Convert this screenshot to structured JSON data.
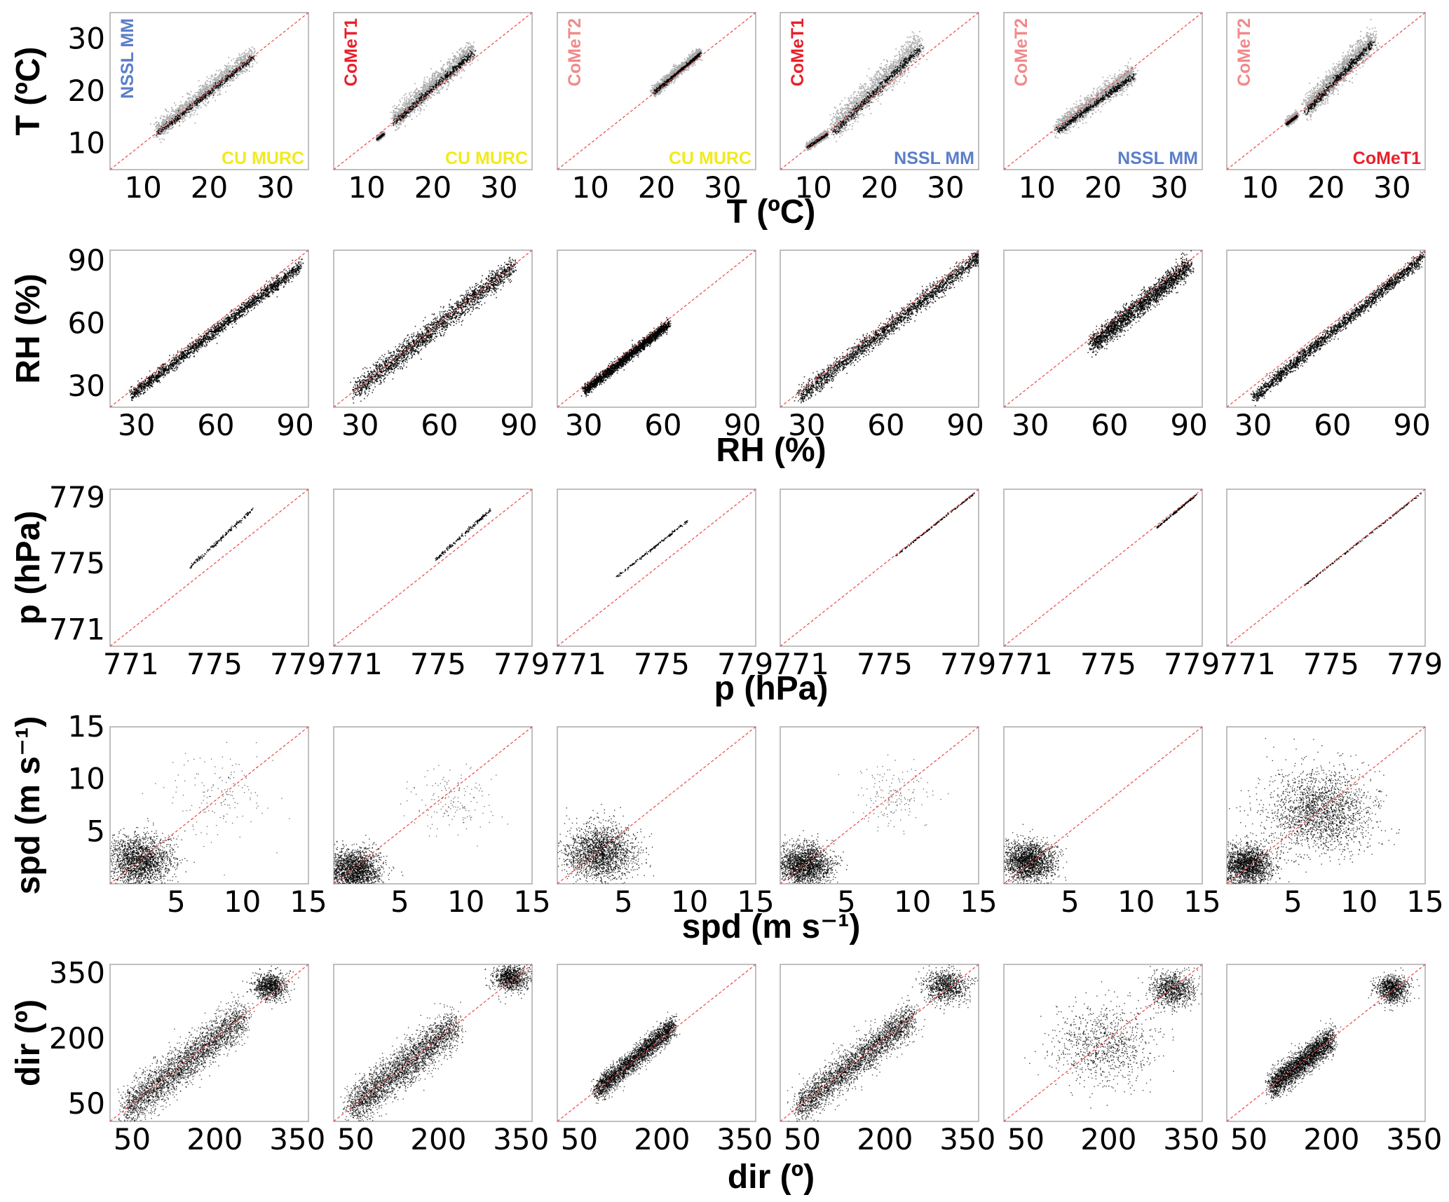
{
  "colors": {
    "NSSL MM": "#5b7ec9",
    "CoMeT1": "#e8202a",
    "CoMeT2": "#f08a8a",
    "CU MURC": "#f2ea1c",
    "identity_line": "#ee4444",
    "dense_points": "#000000",
    "light_points": "#aaaaaa",
    "frame": "#aaaaaa"
  },
  "chart_data": {
    "type": "scatter",
    "layout": "5x6 grid of scatter panels with 1:1 reference lines",
    "column_pairs": [
      {
        "y_instrument": "NSSL MM",
        "x_instrument": "CU MURC"
      },
      {
        "y_instrument": "CoMeT1",
        "x_instrument": "CU MURC"
      },
      {
        "y_instrument": "CoMeT2",
        "x_instrument": "CU MURC"
      },
      {
        "y_instrument": "CoMeT1",
        "x_instrument": "NSSL MM"
      },
      {
        "y_instrument": "CoMeT2",
        "x_instrument": "NSSL MM"
      },
      {
        "y_instrument": "CoMeT2",
        "x_instrument": "CoMeT1"
      }
    ],
    "rows": [
      {
        "ylabel": "T (ºC)",
        "xlabel": "T (ºC)",
        "range": [
          5,
          35
        ],
        "ticks": [
          10,
          20,
          30
        ],
        "tick_labels": [
          "10",
          "20",
          "30"
        ],
        "panels": [
          {
            "clusters": [
              {
                "from": [
                  12,
                  12.5
                ],
                "to": [
                  26.5,
                  27
                ],
                "spread": 1.8,
                "style": "band"
              }
            ]
          },
          {
            "clusters": [
              {
                "from": [
                  14,
                  14.5
                ],
                "to": [
                  26,
                  28
                ],
                "spread": 2.0,
                "style": "band"
              },
              {
                "from": [
                  11.5,
                  11
                ],
                "to": [
                  12.5,
                  12
                ],
                "spread": 0.4,
                "style": "band"
              }
            ]
          },
          {
            "clusters": [
              {
                "from": [
                  19.5,
                  20
                ],
                "to": [
                  26.5,
                  27.5
                ],
                "spread": 1.0,
                "style": "band"
              }
            ]
          },
          {
            "clusters": [
              {
                "from": [
                  13,
                  13
                ],
                "to": [
                  26,
                  29
                ],
                "spread": 2.5,
                "style": "band"
              },
              {
                "from": [
                  9,
                  9.5
                ],
                "to": [
                  12,
                  12
                ],
                "spread": 0.6,
                "style": "band"
              }
            ]
          },
          {
            "clusters": [
              {
                "from": [
                  13,
                  13
                ],
                "to": [
                  24.5,
                  23.5
                ],
                "spread": 1.8,
                "style": "band"
              }
            ]
          },
          {
            "clusters": [
              {
                "from": [
                  17,
                  17
                ],
                "to": [
                  27,
                  30
                ],
                "spread": 2.2,
                "style": "band"
              },
              {
                "from": [
                  14,
                  14
                ],
                "to": [
                  15.5,
                  15.5
                ],
                "spread": 0.6,
                "style": "band"
              }
            ]
          }
        ]
      },
      {
        "ylabel": "RH (%)",
        "xlabel": "RH (%)",
        "range": [
          20,
          95
        ],
        "ticks": [
          30,
          60,
          90
        ],
        "tick_labels": [
          "30",
          "60",
          "90"
        ],
        "panels": [
          {
            "clusters": [
              {
                "from": [
                  28,
                  26
                ],
                "to": [
                  92,
                  88
                ],
                "spread": 3.0,
                "style": "dense"
              }
            ]
          },
          {
            "clusters": [
              {
                "from": [
                  28,
                  28
                ],
                "to": [
                  88,
                  88
                ],
                "spread": 5.0,
                "style": "dense"
              }
            ]
          },
          {
            "clusters": [
              {
                "from": [
                  30,
                  28
                ],
                "to": [
                  62,
                  60
                ],
                "spread": 2.5,
                "style": "dense"
              }
            ]
          },
          {
            "clusters": [
              {
                "from": [
                  27,
                  25
                ],
                "to": [
                  96,
                  93
                ],
                "spread": 4.0,
                "style": "dense"
              }
            ]
          },
          {
            "clusters": [
              {
                "from": [
                  53,
                  50
                ],
                "to": [
                  90,
                  88
                ],
                "spread": 5.0,
                "style": "dense"
              }
            ]
          },
          {
            "clusters": [
              {
                "from": [
                  30,
                  25
                ],
                "to": [
                  94,
                  92
                ],
                "spread": 3.0,
                "style": "dense"
              }
            ]
          }
        ]
      },
      {
        "ylabel": "p (hPa)",
        "xlabel": "p (hPa)",
        "range": [
          770,
          779.5
        ],
        "ticks": [
          771,
          775,
          779
        ],
        "tick_labels": [
          "771",
          "775",
          "779"
        ],
        "panels": [
          {
            "clusters": [
              {
                "from": [
                  773.8,
                  774.8
                ],
                "to": [
                  776.8,
                  778.3
                ],
                "spread": 0.12,
                "style": "thin"
              }
            ]
          },
          {
            "clusters": [
              {
                "from": [
                  774.8,
                  775.2
                ],
                "to": [
                  777.5,
                  778.3
                ],
                "spread": 0.12,
                "style": "thin"
              }
            ]
          },
          {
            "clusters": [
              {
                "from": [
                  772.8,
                  774.2
                ],
                "to": [
                  776.2,
                  777.6
                ],
                "spread": 0.08,
                "style": "thin"
              }
            ]
          },
          {
            "clusters": [
              {
                "from": [
                  775.5,
                  775.5
                ],
                "to": [
                  779.3,
                  779.3
                ],
                "spread": 0.05,
                "style": "thin"
              }
            ]
          },
          {
            "clusters": [
              {
                "from": [
                  777.3,
                  777.2
                ],
                "to": [
                  779.2,
                  779.2
                ],
                "spread": 0.05,
                "style": "thin"
              }
            ]
          },
          {
            "clusters": [
              {
                "from": [
                  773.7,
                  773.7
                ],
                "to": [
                  779.3,
                  779.3
                ],
                "spread": 0.05,
                "style": "thin"
              }
            ]
          }
        ]
      },
      {
        "ylabel": "spd (m s⁻¹)",
        "xlabel": "spd (m s⁻¹)",
        "range": [
          0,
          15
        ],
        "ticks": [
          5,
          10,
          15
        ],
        "tick_labels": [
          "5",
          "10",
          "15"
        ],
        "y_tick_labels": [
          "5",
          "10",
          "15"
        ],
        "panels": [
          {
            "clusters": [
              {
                "center": [
                  2.2,
                  2.2
                ],
                "spread": 1.2,
                "style": "cloud"
              },
              {
                "center": [
                  8,
                  8.5
                ],
                "spread": 2.0,
                "style": "sparse"
              }
            ]
          },
          {
            "clusters": [
              {
                "center": [
                  1.5,
                  1.3
                ],
                "spread": 1.0,
                "style": "cloud"
              },
              {
                "center": [
                  9,
                  8
                ],
                "spread": 1.5,
                "style": "sparse"
              }
            ]
          },
          {
            "clusters": [
              {
                "center": [
                  3.2,
                  3.0
                ],
                "spread": 1.3,
                "style": "cloud"
              }
            ]
          },
          {
            "clusters": [
              {
                "center": [
                  1.8,
                  1.8
                ],
                "spread": 1.0,
                "style": "cloud"
              },
              {
                "center": [
                  8.5,
                  8.5
                ],
                "spread": 1.5,
                "style": "sparse"
              }
            ]
          },
          {
            "clusters": [
              {
                "center": [
                  1.8,
                  2.2
                ],
                "spread": 1.0,
                "style": "cloud"
              }
            ]
          },
          {
            "clusters": [
              {
                "center": [
                  1.5,
                  1.8
                ],
                "spread": 1.0,
                "style": "cloud"
              },
              {
                "center": [
                  7,
                  7
                ],
                "spread": 2.0,
                "style": "cloud"
              }
            ]
          }
        ]
      },
      {
        "ylabel": "dir (º)",
        "xlabel": "dir (º)",
        "range": [
          10,
          370
        ],
        "ticks": [
          50,
          200,
          350
        ],
        "tick_labels": [
          "50",
          "200",
          "350"
        ],
        "panels": [
          {
            "clusters": [
              {
                "from": [
                  40,
                  40
                ],
                "to": [
                  250,
                  250
                ],
                "spread": 45,
                "style": "diag"
              },
              {
                "center": [
                  300,
                  320
                ],
                "spread": 15,
                "style": "blob"
              }
            ]
          },
          {
            "clusters": [
              {
                "from": [
                  40,
                  40
                ],
                "to": [
                  230,
                  230
                ],
                "spread": 45,
                "style": "diag"
              },
              {
                "center": [
                  330,
                  340
                ],
                "spread": 15,
                "style": "blob"
              }
            ]
          },
          {
            "clusters": [
              {
                "from": [
                  80,
                  80
                ],
                "to": [
                  220,
                  230
                ],
                "spread": 25,
                "style": "diag"
              }
            ]
          },
          {
            "clusters": [
              {
                "from": [
                  40,
                  40
                ],
                "to": [
                  250,
                  250
                ],
                "spread": 40,
                "style": "diag"
              },
              {
                "center": [
                  310,
                  320
                ],
                "spread": 20,
                "style": "blob"
              }
            ]
          },
          {
            "clusters": [
              {
                "center": [
                  190,
                  185
                ],
                "spread": 45,
                "style": "blob"
              },
              {
                "center": [
                  315,
                  315
                ],
                "spread": 20,
                "style": "blob"
              }
            ]
          },
          {
            "clusters": [
              {
                "from": [
                  90,
                  90
                ],
                "to": [
                  200,
                  200
                ],
                "spread": 30,
                "style": "diag"
              },
              {
                "center": [
                  310,
                  315
                ],
                "spread": 15,
                "style": "blob"
              }
            ]
          }
        ]
      }
    ],
    "instrument_labels": {
      "top_left": [
        "NSSL MM",
        "CoMeT1",
        "CoMeT2",
        "CoMeT1",
        "CoMeT2",
        "CoMeT2"
      ],
      "bottom_right": [
        "CU MURC",
        "CU MURC",
        "CU MURC",
        "NSSL MM",
        "NSSL MM",
        "CoMeT1"
      ]
    }
  }
}
